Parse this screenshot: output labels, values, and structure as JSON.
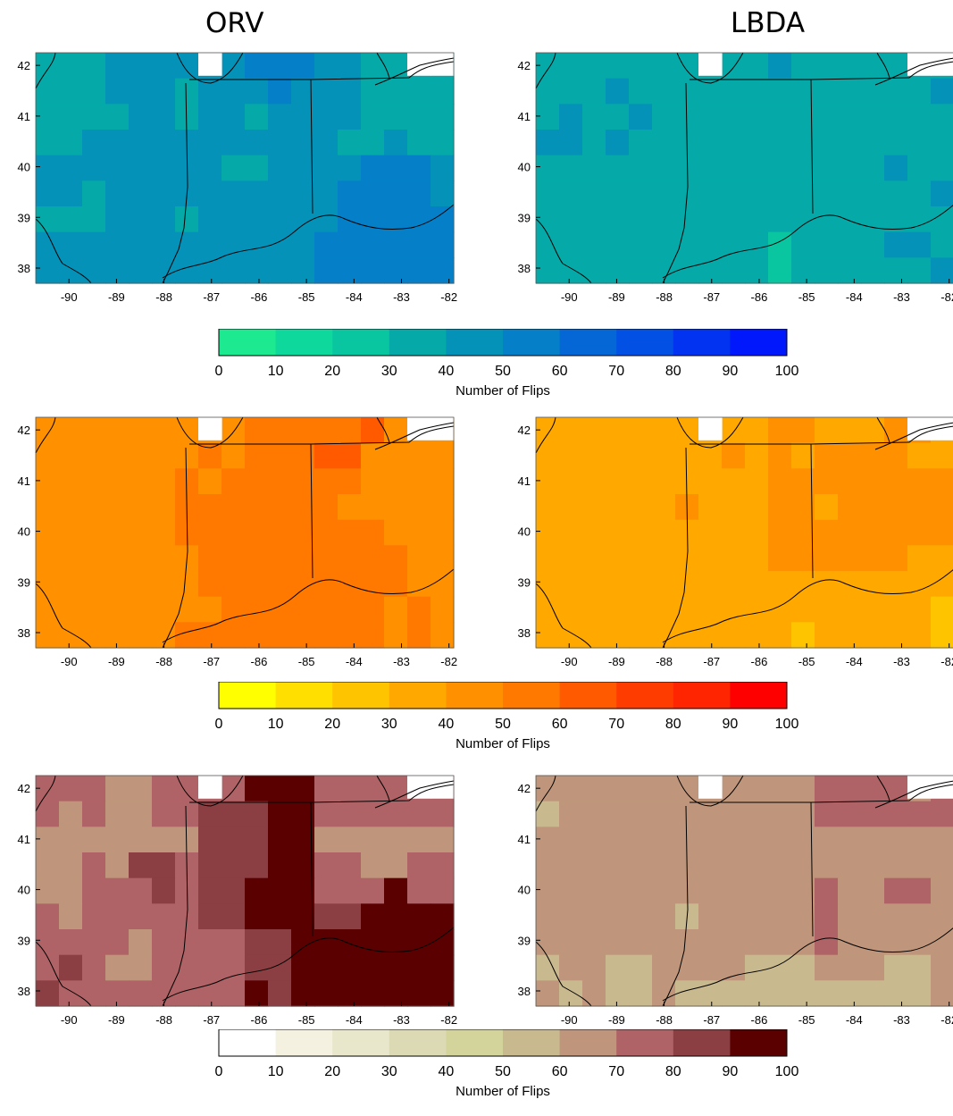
{
  "columns": [
    {
      "title": "ORV"
    },
    {
      "title": "LBDA"
    }
  ],
  "lon_ticks": [
    "-90",
    "-89",
    "-88",
    "-87",
    "-86",
    "-85",
    "-84",
    "-83",
    "-82"
  ],
  "lat_ticks": [
    "42",
    "41",
    "40",
    "39",
    "38"
  ],
  "colorbars": [
    {
      "id": "flips-green-blue",
      "label": "Number of Flips",
      "ticks": [
        "0",
        "10",
        "20",
        "30",
        "40",
        "50",
        "60",
        "70",
        "80",
        "90",
        "100"
      ],
      "colors": [
        "#1de990",
        "#0fd89c",
        "#0ac6a0",
        "#05aaa8",
        "#0592b8",
        "#0580c8",
        "#0566d6",
        "#0350e5",
        "#0233f0",
        "#0018fb"
      ]
    },
    {
      "id": "flips-yellow-red",
      "label": "Number of Flips",
      "ticks": [
        "0",
        "10",
        "20",
        "30",
        "40",
        "50",
        "60",
        "70",
        "80",
        "90",
        "100"
      ],
      "colors": [
        "#ffff00",
        "#ffdf00",
        "#ffc400",
        "#ffa900",
        "#ff9100",
        "#ff7800",
        "#ff5a00",
        "#ff3c00",
        "#ff2500",
        "#ff0000"
      ]
    },
    {
      "id": "flips-brown",
      "label": "Number of Flips",
      "ticks": [
        "0",
        "10",
        "20",
        "30",
        "40",
        "50",
        "60",
        "70",
        "80",
        "90",
        "100"
      ],
      "colors": [
        "#ffffff",
        "#f4f1e1",
        "#e8e6cb",
        "#dcdab5",
        "#d3d49c",
        "#c9b98f",
        "#bf967b",
        "#b06366",
        "#8b3f42",
        "#5a0000"
      ]
    }
  ],
  "panels": [
    {
      "row": 0,
      "col": 0,
      "name": "ORV",
      "colorbar": 0,
      "grid": [
        "333444444555443333",
        "333444344454443333",
        "333344344344443333",
        "334444444444433433",
        "444444443344445554",
        "443444444444455554",
        "333444344444455555",
        "444444444444555555",
        "444444444444555555"
      ]
    },
    {
      "row": 0,
      "col": 1,
      "name": "LBDA",
      "colorbar": 0,
      "grid": [
        "333333333343333333",
        "333433333333333334",
        "343343333333333333",
        "443433333333333333",
        "333333333333333433",
        "333333333333333334",
        "333333333333333333",
        "333333333323333443",
        "333333333323333334"
      ]
    },
    {
      "row": 1,
      "col": 0,
      "name": "ORV",
      "colorbar": 1,
      "grid": [
        "444444444555556444",
        "444444454555664444",
        "444444545555554444",
        "444444555555544444",
        "444444555555555444",
        "444444455555555544",
        "444444455555555544",
        "444444445555555454",
        "444444555555555454"
      ]
    },
    {
      "row": 1,
      "col": 1,
      "name": "LBDA",
      "colorbar": 1,
      "grid": [
        "333333333344333443",
        "333333334343444433",
        "333333333344444444",
        "333333433344344444",
        "333333333344444444",
        "333333333344444433",
        "333333333333333333",
        "333333333333333332",
        "333333333332333332"
      ]
    },
    {
      "row": 2,
      "col": 0,
      "name": "ORV",
      "colorbar": 2,
      "grid": [
        "777667777999777777",
        "767667788899777777",
        "666666688899666666",
        "667688788899776677",
        "667778788999777977",
        "767777788999889999",
        "777767777889999999",
        "787667777889999999",
        "877777777989999999"
      ]
    },
    {
      "row": 2,
      "col": 1,
      "name": "LBDA",
      "colorbar": 2,
      "grid": [
        "666666666666777767",
        "566666666666777777",
        "666666666666666666",
        "666666666666666666",
        "666666666666766776",
        "666666566666766666",
        "666666666666766666",
        "566556666555666556",
        "656556555555555556"
      ]
    }
  ]
}
